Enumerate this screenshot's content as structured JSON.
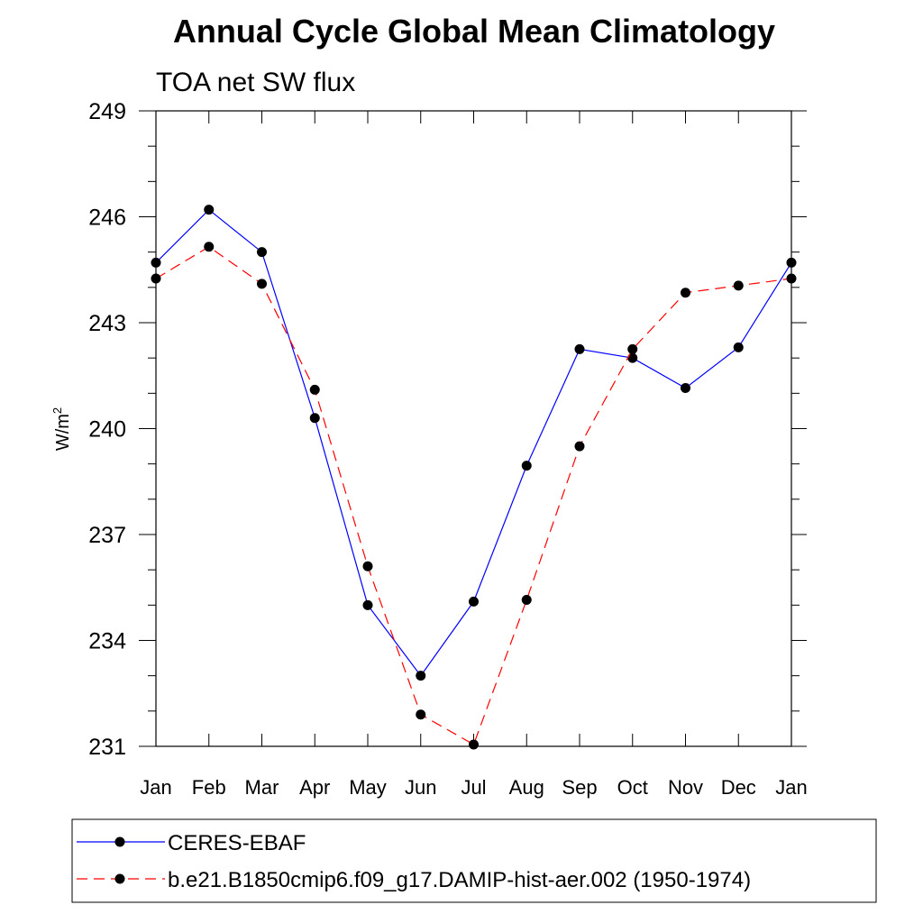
{
  "chart_data": {
    "type": "line",
    "title": "Annual Cycle Global Mean Climatology",
    "subtitle": "TOA net SW flux",
    "xlabel": "",
    "ylabel": "W/m",
    "ylabel_superscript": "2",
    "categories": [
      "Jan",
      "Feb",
      "Mar",
      "Apr",
      "May",
      "Jun",
      "Jul",
      "Aug",
      "Sep",
      "Oct",
      "Nov",
      "Dec",
      "Jan"
    ],
    "ylim": [
      231,
      249
    ],
    "yticks": [
      231,
      234,
      237,
      240,
      243,
      246,
      249
    ],
    "yminor_step": 1,
    "grid": false,
    "legend_position": "bottom",
    "series": [
      {
        "name": "CERES-EBAF",
        "color": "#0000ff",
        "dash": "solid",
        "marker": "filled-circle",
        "values": [
          244.7,
          246.2,
          245.0,
          240.3,
          235.0,
          233.0,
          235.1,
          238.95,
          242.25,
          242.0,
          241.15,
          242.3,
          244.7
        ]
      },
      {
        "name": "b.e21.B1850cmip6.f09_g17.DAMIP-hist-aer.002 (1950-1974)",
        "color": "#ff0000",
        "dash": "dashed",
        "marker": "filled-circle",
        "values": [
          244.25,
          245.15,
          244.1,
          241.1,
          236.1,
          231.9,
          231.05,
          235.15,
          239.5,
          242.25,
          243.85,
          244.05,
          244.25
        ]
      }
    ]
  }
}
